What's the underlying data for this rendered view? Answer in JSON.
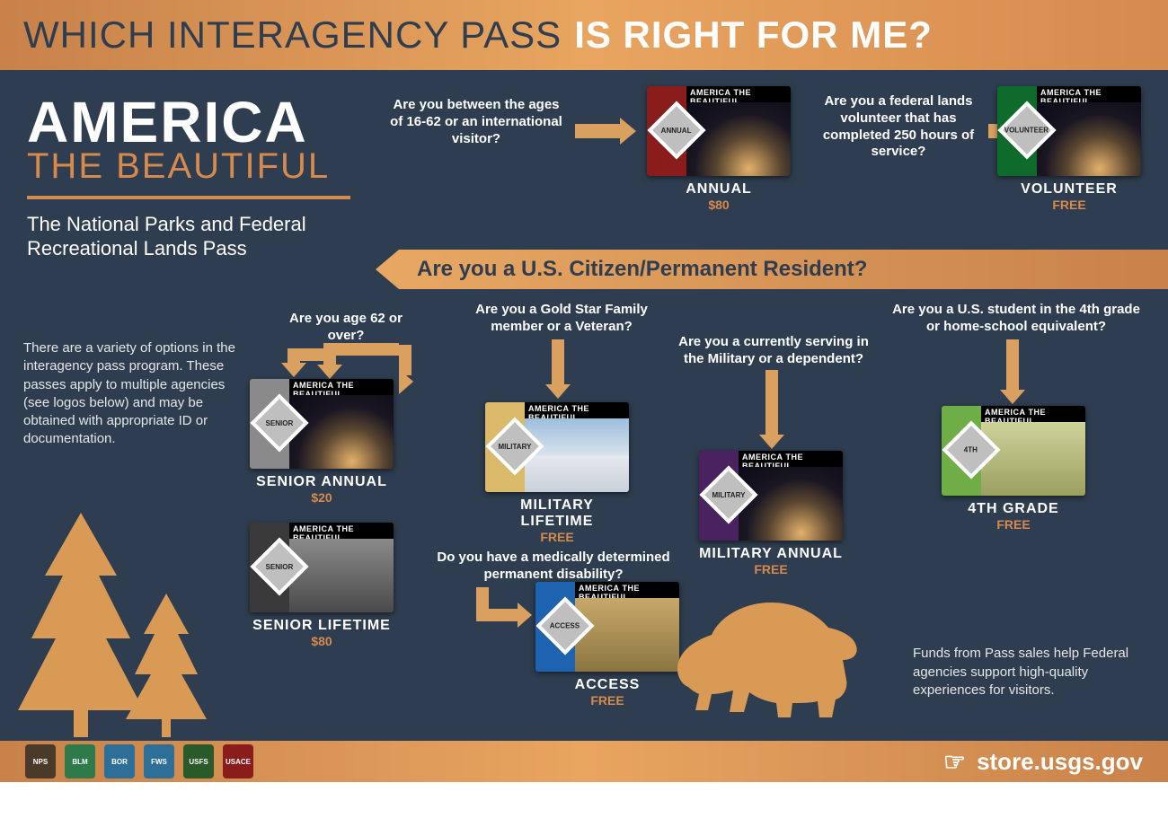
{
  "colors": {
    "bg": "#2e3d4f",
    "accent": "#d68a4e",
    "arrow": "#d9a060",
    "white": "#ffffff",
    "header_dark_text": "#2e3d4f"
  },
  "header": {
    "thin": "WHICH INTERAGENCY PASS",
    "bold": "IS RIGHT FOR ME?"
  },
  "brand": {
    "line1": "AMERICA",
    "line2": "THE BEAUTIFUL",
    "tagline": "The National Parks and Federal Recreational Lands Pass"
  },
  "intro": "There are a variety of options in the interagency pass program. These passes apply to multiple agencies (see logos below) and may be obtained with appropriate ID or documentation.",
  "question_bar": "Are you a U.S. Citizen/Permanent Resident?",
  "top_row": {
    "q1": "Are you between the ages of 16-62 or an international visitor?",
    "q2": "Are you a federal lands volunteer that has completed 250 hours of service?"
  },
  "bottom_qs": {
    "senior": "Are you age 62 or over?",
    "gold": "Are you a Gold Star Family member or a Veteran?",
    "milserve": "Are you a currently serving in the Military or a dependent?",
    "fourth": "Are you a U.S. student in the 4th grade or home-school equivalent?",
    "access": "Do you have a medically determined permanent disability?"
  },
  "passes": {
    "annual": {
      "name": "ANNUAL",
      "price": "$80",
      "stripe": "#8a1c1c",
      "diamond_text": "ANNUAL"
    },
    "volunteer": {
      "name": "VOLUNTEER",
      "price": "FREE",
      "stripe": "#0e6b2c",
      "diamond_text": "VOLUNTEER"
    },
    "senior_annual": {
      "name": "SENIOR ANNUAL",
      "price": "$20",
      "stripe": "#8a8a8a",
      "diamond_text": "SENIOR"
    },
    "senior_lifetime": {
      "name": "SENIOR LIFETIME",
      "price": "$80",
      "stripe": "#3a3a3a",
      "diamond_text": "SENIOR"
    },
    "mil_lifetime": {
      "name": "MILITARY LIFETIME",
      "price": "FREE",
      "stripe": "#d9b96a",
      "diamond_text": "MILITARY",
      "scene": "linear-gradient(#8fb8d8 0%, #cadbea 45%, #eceef0 46%, #cdd4dc 100%)"
    },
    "mil_annual": {
      "name": "MILITARY ANNUAL",
      "price": "FREE",
      "stripe": "#4a2260",
      "diamond_text": "MILITARY"
    },
    "fourth": {
      "name": "4TH GRADE",
      "price": "FREE",
      "stripe": "#6fae46",
      "diamond_text": "4TH",
      "scene": "linear-gradient(#d8cf86,#b7a95a)"
    },
    "access": {
      "name": "ACCESS",
      "price": "FREE",
      "stripe": "#1e63b0",
      "diamond_text": "ACCESS",
      "scene": "linear-gradient(#b89658,#7a6a3a)"
    }
  },
  "card_header": {
    "a": "AMERICA",
    "b": " THE BEAUTIFUL"
  },
  "funds_note": "Funds from Pass sales help Federal agencies support high-quality experiences for visitors.",
  "footer": {
    "store": "store.usgs.gov",
    "agencies": [
      {
        "label": "NPS",
        "color": "#4a3a2a"
      },
      {
        "label": "BLM",
        "color": "#2e7a4a"
      },
      {
        "label": "BOR",
        "color": "#2e6f99"
      },
      {
        "label": "FWS",
        "color": "#2e6f99"
      },
      {
        "label": "USFS",
        "color": "#2a5a2a"
      },
      {
        "label": "USACE",
        "color": "#8a1c1c"
      }
    ]
  }
}
